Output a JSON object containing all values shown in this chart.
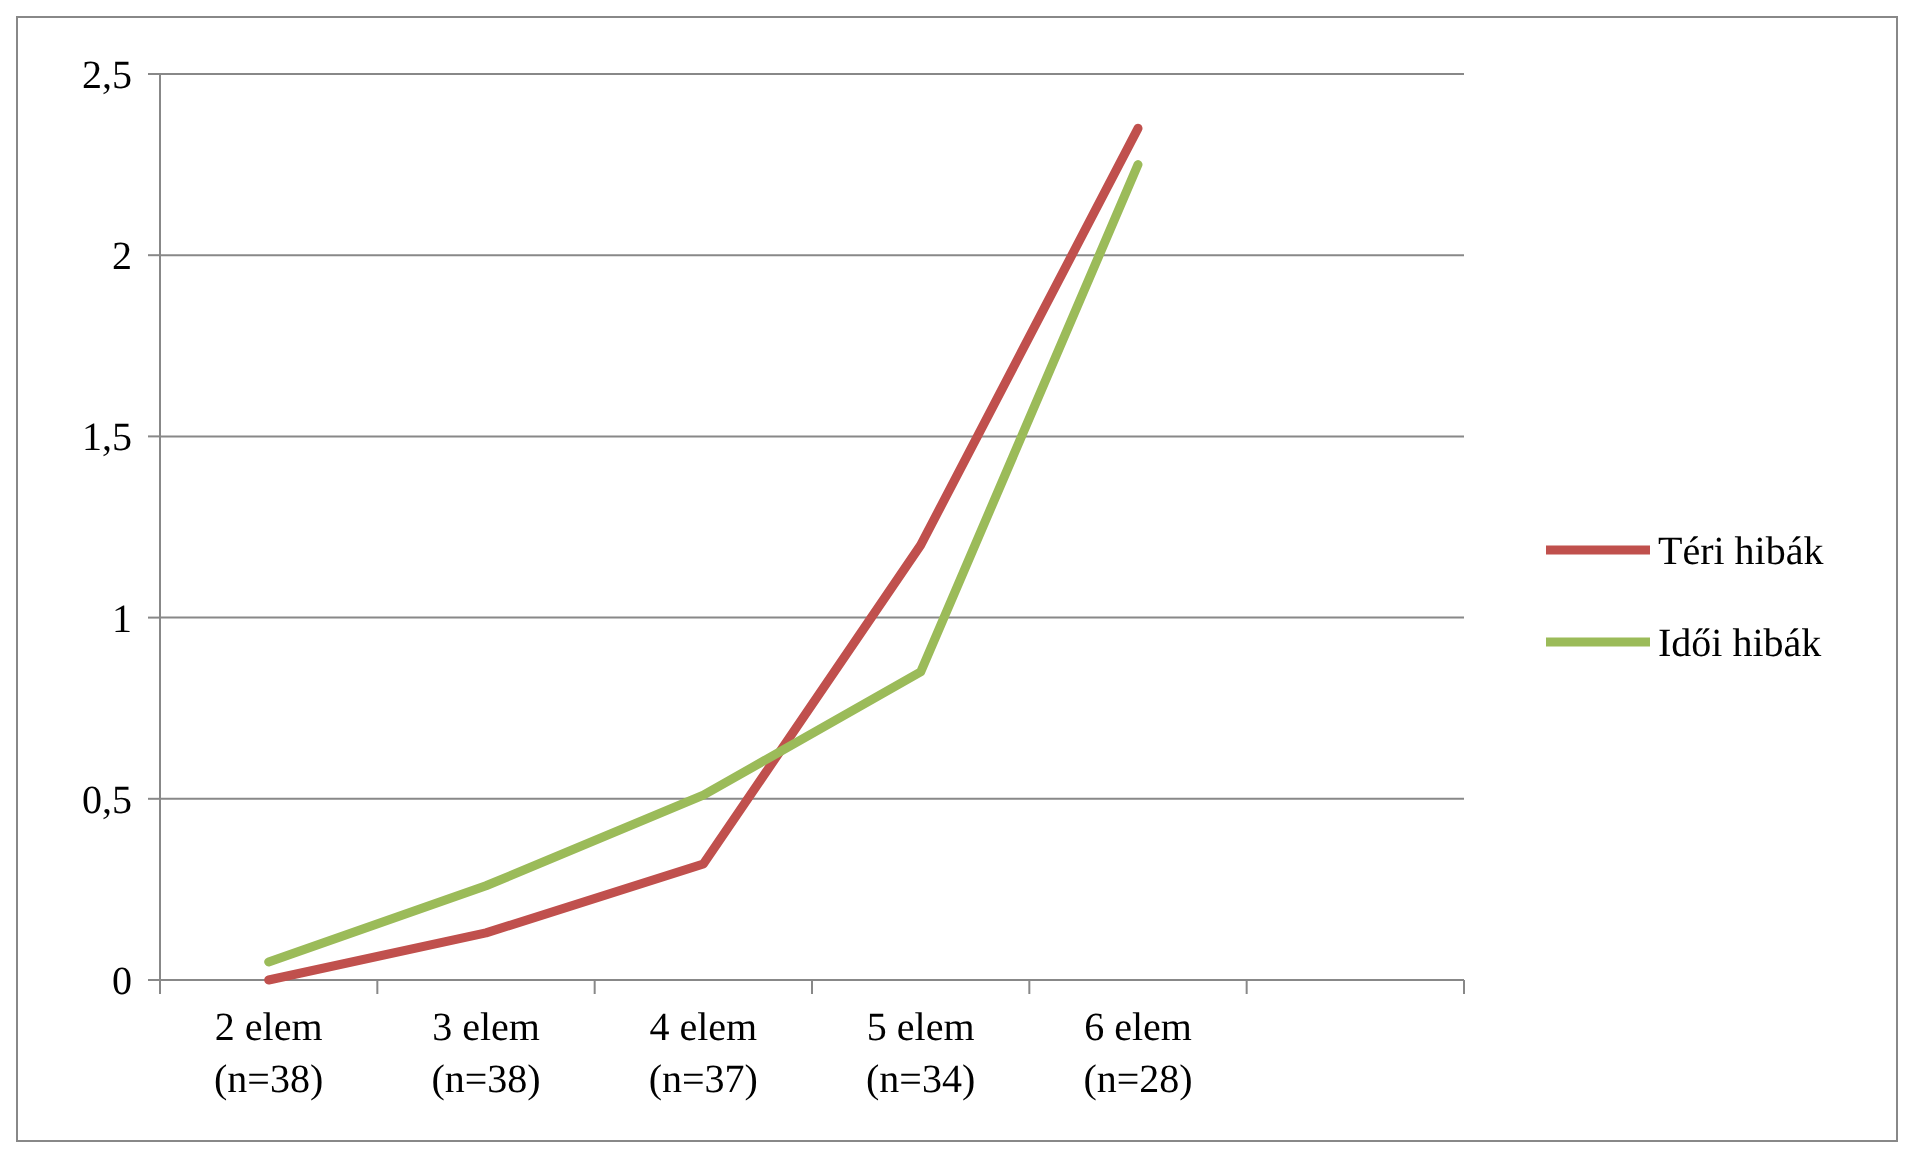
{
  "chart_data": {
    "type": "line",
    "categories": [
      "2 elem\n(n=38)",
      "3 elem\n(n=38)",
      "4 elem\n(n=37)",
      "5 elem\n(n=34)",
      "6 elem\n(n=28)",
      null
    ],
    "series": [
      {
        "name": "Téri hibák",
        "color": "#c0504d",
        "values": [
          0,
          0.13,
          0.32,
          1.2,
          2.35,
          null
        ]
      },
      {
        "name": "Idői hibák",
        "color": "#9bbb59",
        "values": [
          0.05,
          0.26,
          0.51,
          0.85,
          2.25,
          null
        ]
      }
    ],
    "ylim": [
      0,
      2.5
    ],
    "yticks": [
      {
        "value": 0,
        "label": "0"
      },
      {
        "value": 0.5,
        "label": "0,5"
      },
      {
        "value": 1,
        "label": "1"
      },
      {
        "value": 1.5,
        "label": "1,5"
      },
      {
        "value": 2,
        "label": "2"
      },
      {
        "value": 2.5,
        "label": "2,5"
      }
    ],
    "grid": "y",
    "legend": "right",
    "marker": "none",
    "line_style": "solid"
  }
}
